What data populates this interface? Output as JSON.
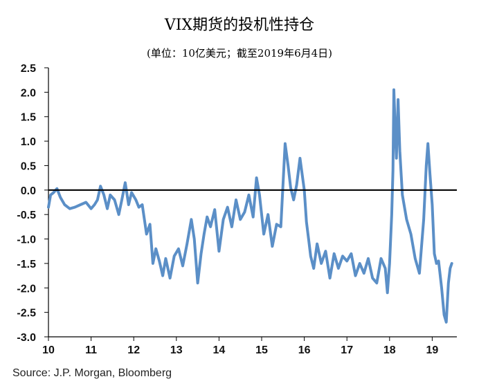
{
  "chart_data": {
    "type": "line",
    "title": "VIX期货的投机性持仓",
    "subtitle": "(单位：10亿美元；截至2019年6月4日)",
    "source": "Source: J.P. Morgan, Bloomberg",
    "ylim": [
      -3.0,
      2.5
    ],
    "xlim": [
      2010.0,
      2019.55
    ],
    "y_ticks": [
      "2.5",
      "2.0",
      "1.5",
      "1.0",
      "0.5",
      "0.0",
      "-0.5",
      "-1.0",
      "-1.5",
      "-2.0",
      "-2.5",
      "-3.0"
    ],
    "x_ticks": [
      "10",
      "11",
      "12",
      "13",
      "14",
      "15",
      "16",
      "17",
      "18",
      "19"
    ],
    "colors": {
      "series": "#5b8fc7",
      "zero_line": "#000000"
    },
    "series": [
      {
        "x": [
          2010.0,
          2010.05,
          2010.12,
          2010.2,
          2010.28,
          2010.38,
          2010.5,
          2010.62,
          2010.75,
          2010.88,
          2011.0,
          2011.08,
          2011.15,
          2011.22,
          2011.3,
          2011.38,
          2011.45,
          2011.55,
          2011.65,
          2011.72,
          2011.8,
          2011.88,
          2011.95,
          2012.05,
          2012.12,
          2012.2,
          2012.3,
          2012.38,
          2012.45,
          2012.52,
          2012.6,
          2012.68,
          2012.75,
          2012.85,
          2012.95,
          2013.05,
          2013.15,
          2013.25,
          2013.35,
          2013.42,
          2013.5,
          2013.58,
          2013.65,
          2013.72,
          2013.8,
          2013.9,
          2014.0,
          2014.1,
          2014.2,
          2014.3,
          2014.4,
          2014.5,
          2014.6,
          2014.7,
          2014.8,
          2014.88,
          2014.95,
          2015.05,
          2015.15,
          2015.25,
          2015.35,
          2015.45,
          2015.55,
          2015.62,
          2015.68,
          2015.75,
          2015.82,
          2015.9,
          2016.0,
          2016.05,
          2016.1,
          2016.15,
          2016.22,
          2016.3,
          2016.4,
          2016.5,
          2016.6,
          2016.7,
          2016.8,
          2016.9,
          2017.0,
          2017.1,
          2017.2,
          2017.3,
          2017.4,
          2017.5,
          2017.6,
          2017.7,
          2017.8,
          2017.9,
          2017.95,
          2018.0,
          2018.05,
          2018.08,
          2018.1,
          2018.13,
          2018.16,
          2018.2,
          2018.24,
          2018.3,
          2018.4,
          2018.5,
          2018.6,
          2018.7,
          2018.8,
          2018.86,
          2018.9,
          2018.95,
          2019.0,
          2019.05,
          2019.1,
          2019.15,
          2019.22,
          2019.28,
          2019.33,
          2019.38,
          2019.42,
          2019.46
        ],
        "values": [
          -0.35,
          -0.1,
          -0.05,
          0.03,
          -0.15,
          -0.3,
          -0.38,
          -0.35,
          -0.3,
          -0.25,
          -0.38,
          -0.3,
          -0.2,
          0.08,
          -0.1,
          -0.38,
          -0.1,
          -0.2,
          -0.5,
          -0.2,
          0.15,
          -0.3,
          -0.05,
          -0.2,
          -0.35,
          -0.3,
          -0.9,
          -0.7,
          -1.5,
          -1.2,
          -1.45,
          -1.75,
          -1.4,
          -1.8,
          -1.35,
          -1.2,
          -1.55,
          -1.1,
          -0.6,
          -1.0,
          -1.9,
          -1.3,
          -0.9,
          -0.55,
          -0.75,
          -0.4,
          -1.25,
          -0.6,
          -0.35,
          -0.75,
          -0.2,
          -0.6,
          -0.45,
          -0.1,
          -0.55,
          0.25,
          -0.1,
          -0.9,
          -0.5,
          -1.15,
          -0.7,
          -0.75,
          0.95,
          0.5,
          0.05,
          -0.2,
          0.1,
          0.65,
          0.0,
          -0.65,
          -1.0,
          -1.35,
          -1.6,
          -1.1,
          -1.5,
          -1.25,
          -1.8,
          -1.3,
          -1.6,
          -1.35,
          -1.45,
          -1.3,
          -1.75,
          -1.5,
          -1.7,
          -1.4,
          -1.8,
          -1.9,
          -1.4,
          -1.6,
          -2.1,
          -1.5,
          -0.5,
          0.4,
          2.05,
          1.3,
          0.65,
          1.85,
          0.8,
          -0.1,
          -0.6,
          -0.9,
          -1.4,
          -1.7,
          -0.6,
          0.5,
          0.95,
          0.3,
          -0.3,
          -1.3,
          -1.5,
          -1.45,
          -2.0,
          -2.55,
          -2.7,
          -1.9,
          -1.6,
          -1.5
        ]
      }
    ]
  }
}
